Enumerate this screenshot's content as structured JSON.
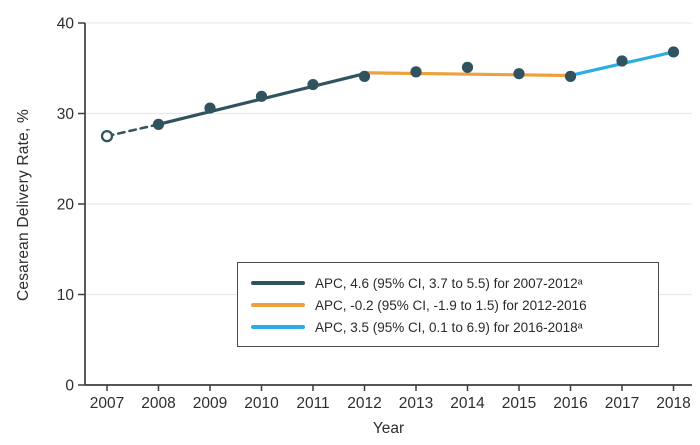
{
  "chart_data": {
    "type": "line",
    "title": "",
    "xlabel": "Year",
    "ylabel": "Cesarean Delivery Rate, %",
    "ylim": [
      0,
      40
    ],
    "yticks": [
      0,
      10,
      20,
      30,
      40
    ],
    "categories": [
      2007,
      2008,
      2009,
      2010,
      2011,
      2012,
      2013,
      2014,
      2015,
      2016,
      2017,
      2018
    ],
    "series": [
      {
        "name": "Cesarean delivery rate",
        "values": [
          27.5,
          28.8,
          30.6,
          31.9,
          33.2,
          34.1,
          34.6,
          35.1,
          34.4,
          34.1,
          35.8,
          36.8
        ],
        "point_color": "#31535F",
        "open_points": [
          2007
        ]
      }
    ],
    "trend_segments": [
      {
        "name": "connector-2007-2008",
        "from_year": 2007,
        "to_year": 2008,
        "from_value": 27.5,
        "to_value": 28.8,
        "color": "#31535F",
        "style": "dashed",
        "width": 2.5
      },
      {
        "name": "apc-2007-2012",
        "from_year": 2008,
        "to_year": 2012,
        "from_value": 28.8,
        "to_value": 34.4,
        "color": "#31535F",
        "style": "solid",
        "width": 3.2
      },
      {
        "name": "apc-2012-2016",
        "from_year": 2012,
        "to_year": 2016,
        "from_value": 34.5,
        "to_value": 34.2,
        "color": "#EDA13C",
        "style": "solid",
        "width": 3.2
      },
      {
        "name": "apc-2016-2018",
        "from_year": 2016,
        "to_year": 2018,
        "from_value": 34.2,
        "to_value": 36.8,
        "color": "#2AAEE4",
        "style": "solid",
        "width": 3.2
      }
    ],
    "legend": {
      "position": "inside-bottom-center",
      "entries": [
        {
          "label": "APC, 4.6 (95% CI, 3.7 to 5.5) for 2007-2012ᵃ",
          "color": "#31535F"
        },
        {
          "label": "APC, -0.2 (95% CI, -1.9 to 1.5) for 2012-2016",
          "color": "#EDA13C"
        },
        {
          "label": "APC, 3.5 (95% CI, 0.1 to 6.9) for 2016-2018ᵃ",
          "color": "#2AAEE4"
        }
      ]
    },
    "grid": "horizontal",
    "colors": {
      "axis": "#3D3D3D",
      "grid": "#E9E9E6",
      "text": "#2E2E2E",
      "background": "#FFFFFF",
      "dark_teal": "#31535F",
      "orange": "#EDA13C",
      "cyan": "#2AAEE4"
    }
  }
}
